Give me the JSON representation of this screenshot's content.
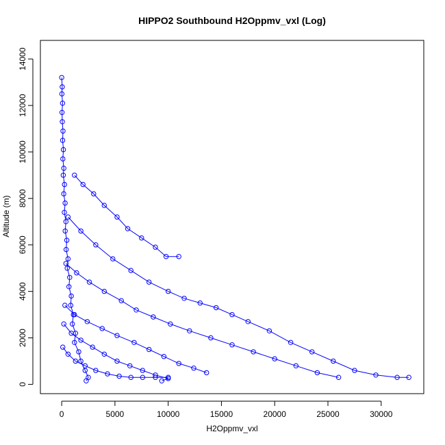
{
  "chart_data": {
    "type": "scatter",
    "title": "HIPPO2 Southbound H2Oppmv_vxl (Log)",
    "xlabel": "H2Oppmv_vxl",
    "ylabel": "Altitude (m)",
    "xlim": [
      -2000,
      34000
    ],
    "ylim": [
      -400,
      14800
    ],
    "xticks": [
      0,
      5000,
      10000,
      15000,
      20000,
      25000,
      30000
    ],
    "yticks": [
      0,
      2000,
      4000,
      6000,
      8000,
      10000,
      12000,
      14000
    ],
    "grid": false,
    "legend": "none",
    "point_color": "#0000ff",
    "marker": "open-circle",
    "connected": true,
    "series": [
      {
        "values": [
          [
            0,
            13200
          ],
          [
            50,
            12800
          ],
          [
            20,
            12500
          ],
          [
            80,
            12100
          ],
          [
            30,
            11700
          ],
          [
            60,
            11300
          ],
          [
            120,
            10900
          ],
          [
            90,
            10500
          ],
          [
            160,
            10100
          ],
          [
            110,
            9700
          ],
          [
            200,
            9300
          ],
          [
            150,
            9000
          ],
          [
            260,
            8600
          ],
          [
            190,
            8200
          ],
          [
            320,
            7800
          ],
          [
            250,
            7400
          ],
          [
            400,
            7000
          ],
          [
            330,
            6600
          ],
          [
            480,
            6200
          ],
          [
            420,
            5800
          ],
          [
            600,
            5400
          ],
          [
            520,
            5000
          ],
          [
            750,
            4600
          ],
          [
            680,
            4200
          ],
          [
            900,
            3800
          ],
          [
            850,
            3400
          ],
          [
            1100,
            3000
          ],
          [
            1000,
            2600
          ],
          [
            1300,
            2200
          ],
          [
            1200,
            1800
          ],
          [
            1600,
            1400
          ],
          [
            1800,
            1000
          ],
          [
            2200,
            600
          ],
          [
            2500,
            300
          ],
          [
            2300,
            150
          ]
        ]
      },
      {
        "values": [
          [
            1200,
            9000
          ],
          [
            2000,
            8600
          ],
          [
            3000,
            8200
          ],
          [
            4000,
            7700
          ],
          [
            5200,
            7200
          ],
          [
            6200,
            6700
          ],
          [
            7500,
            6300
          ],
          [
            8800,
            5900
          ],
          [
            9800,
            5500
          ],
          [
            11000,
            5500
          ]
        ]
      },
      {
        "values": [
          [
            600,
            7200
          ],
          [
            1800,
            6600
          ],
          [
            3200,
            6000
          ],
          [
            4800,
            5400
          ],
          [
            6500,
            4900
          ],
          [
            8200,
            4400
          ],
          [
            10000,
            4000
          ],
          [
            11500,
            3700
          ],
          [
            13000,
            3500
          ],
          [
            14500,
            3300
          ],
          [
            16000,
            3000
          ],
          [
            17500,
            2700
          ],
          [
            19500,
            2300
          ],
          [
            21500,
            1800
          ],
          [
            23500,
            1400
          ],
          [
            25500,
            1000
          ],
          [
            27500,
            600
          ],
          [
            29500,
            400
          ],
          [
            31500,
            300
          ],
          [
            32600,
            300
          ]
        ]
      },
      {
        "values": [
          [
            400,
            5200
          ],
          [
            1400,
            4800
          ],
          [
            2600,
            4400
          ],
          [
            4000,
            4000
          ],
          [
            5600,
            3600
          ],
          [
            7000,
            3200
          ],
          [
            8600,
            2900
          ],
          [
            10200,
            2600
          ],
          [
            12000,
            2300
          ],
          [
            14000,
            2000
          ],
          [
            16000,
            1700
          ],
          [
            18000,
            1400
          ],
          [
            20000,
            1100
          ],
          [
            22000,
            800
          ],
          [
            24000,
            500
          ],
          [
            26000,
            300
          ]
        ]
      },
      {
        "values": [
          [
            300,
            3400
          ],
          [
            1200,
            3000
          ],
          [
            2400,
            2700
          ],
          [
            3800,
            2400
          ],
          [
            5200,
            2100
          ],
          [
            6800,
            1800
          ],
          [
            8200,
            1500
          ],
          [
            9600,
            1200
          ],
          [
            11000,
            900
          ],
          [
            12400,
            700
          ],
          [
            13600,
            500
          ]
        ]
      },
      {
        "values": [
          [
            200,
            2600
          ],
          [
            900,
            2200
          ],
          [
            1800,
            1900
          ],
          [
            2900,
            1600
          ],
          [
            4000,
            1300
          ],
          [
            5200,
            1000
          ],
          [
            6400,
            800
          ],
          [
            7600,
            600
          ],
          [
            8800,
            400
          ],
          [
            10000,
            250
          ],
          [
            9400,
            150
          ]
        ]
      },
      {
        "values": [
          [
            100,
            1600
          ],
          [
            600,
            1300
          ],
          [
            1300,
            1000
          ],
          [
            2200,
            800
          ],
          [
            3200,
            600
          ],
          [
            4300,
            450
          ],
          [
            5400,
            350
          ],
          [
            6500,
            300
          ],
          [
            7600,
            300
          ],
          [
            8800,
            300
          ],
          [
            10000,
            300
          ]
        ]
      }
    ]
  }
}
